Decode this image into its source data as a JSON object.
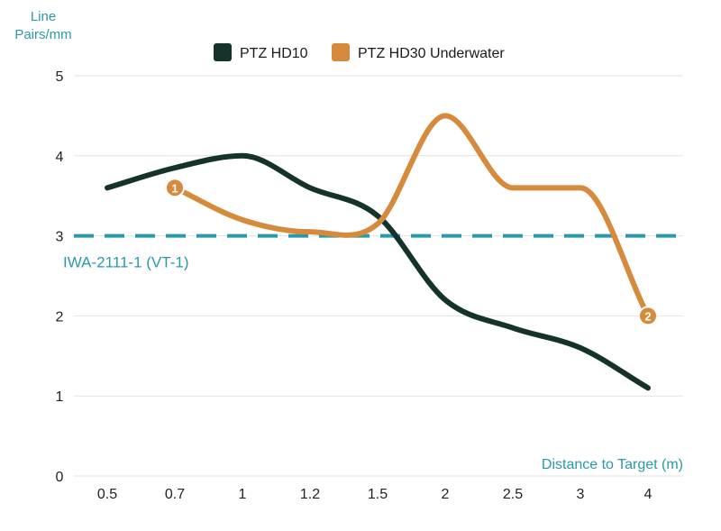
{
  "chart_data": {
    "type": "line",
    "title": "",
    "ylabel_line1": "Line",
    "ylabel_line2": "Pairs/mm",
    "xlabel": "Distance to Target (m)",
    "categories": [
      "0.5",
      "0.7",
      "1",
      "1.2",
      "1.5",
      "2",
      "2.5",
      "3",
      "4"
    ],
    "ylim": [
      0,
      5
    ],
    "yticks": [
      "0",
      "1",
      "2",
      "3",
      "4",
      "5"
    ],
    "grid": true,
    "legend_position": "top-center",
    "series": [
      {
        "name": "PTZ HD10",
        "color": "#15332a",
        "points": [
          [
            0,
            3.6
          ],
          [
            1,
            3.85
          ],
          [
            2,
            4.0
          ],
          [
            3,
            3.6
          ],
          [
            4,
            3.25
          ],
          [
            5,
            2.2
          ],
          [
            6,
            1.85
          ],
          [
            7,
            1.6
          ],
          [
            8,
            1.1
          ]
        ]
      },
      {
        "name": "PTZ HD30 Underwater",
        "color": "#d68a3c",
        "points": [
          [
            1,
            3.6
          ],
          [
            2,
            3.2
          ],
          [
            3,
            3.05
          ],
          [
            4,
            3.15
          ],
          [
            5,
            4.5
          ],
          [
            6,
            3.6
          ],
          [
            7,
            3.6
          ],
          [
            8,
            2.0
          ]
        ]
      }
    ],
    "reference_line": {
      "label": "IWA-2111-1 (VT-1)",
      "value": 3.0,
      "color": "#2a9aa8"
    },
    "markers": [
      {
        "label": "1",
        "series": 1,
        "point": [
          1,
          3.6
        ]
      },
      {
        "label": "2",
        "series": 1,
        "point": [
          8,
          2.0
        ]
      }
    ]
  }
}
